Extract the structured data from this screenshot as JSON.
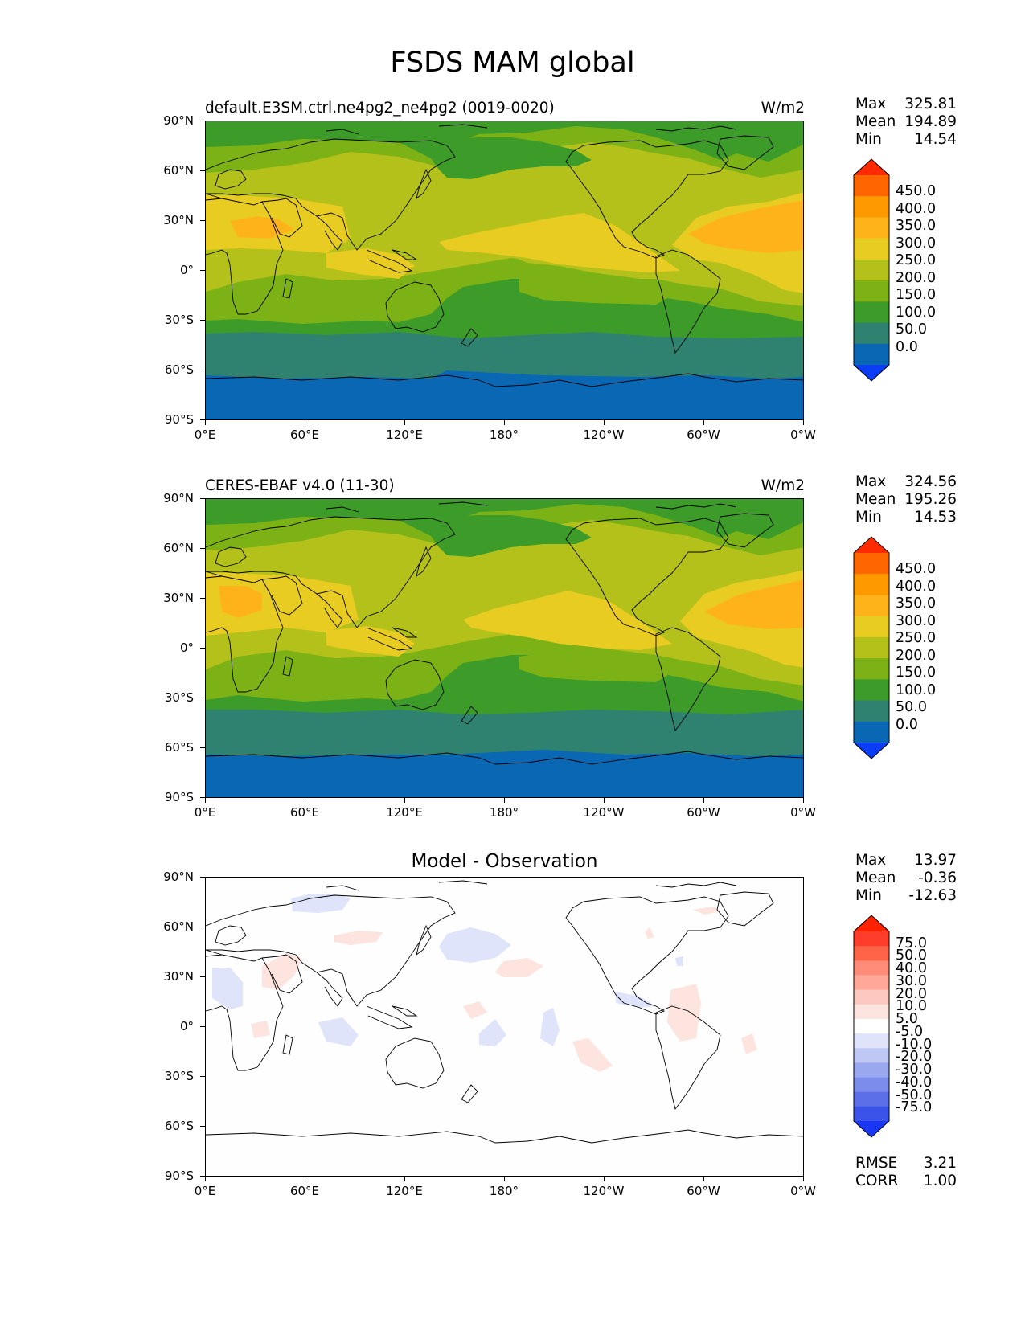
{
  "figure": {
    "title": "FSDS MAM global"
  },
  "lat_labels": [
    "90°N",
    "60°N",
    "30°N",
    "0°",
    "30°S",
    "60°S",
    "90°S"
  ],
  "lon_labels": [
    "0°E",
    "60°E",
    "120°E",
    "180°",
    "120°W",
    "60°W",
    "0°W"
  ],
  "stat_names": {
    "max": "Max",
    "mean": "Mean",
    "min": "Min"
  },
  "panels": [
    {
      "title": "default.E3SM.ctrl.ne4pg2_ne4pg2 (0019-0020)",
      "units": "W/m2",
      "stats": {
        "max": "325.81",
        "mean": "194.89",
        "min": "14.54"
      },
      "colorbar": [
        "450.0",
        "400.0",
        "350.0",
        "300.0",
        "250.0",
        "200.0",
        "150.0",
        "100.0",
        "50.0",
        "0.0"
      ]
    },
    {
      "title": "CERES-EBAF v4.0 (11-30)",
      "units": "W/m2",
      "stats": {
        "max": "324.56",
        "mean": "195.26",
        "min": "14.53"
      },
      "colorbar": [
        "450.0",
        "400.0",
        "350.0",
        "300.0",
        "250.0",
        "200.0",
        "150.0",
        "100.0",
        "50.0",
        "0.0"
      ]
    },
    {
      "title": "Model - Observation",
      "units": "",
      "stats": {
        "max": "13.97",
        "mean": "-0.36",
        "min": "-12.63"
      },
      "colorbar": [
        "75.0",
        "50.0",
        "40.0",
        "30.0",
        "20.0",
        "10.0",
        "5.0",
        "-5.0",
        "-10.0",
        "-20.0",
        "-30.0",
        "-40.0",
        "-50.0",
        "-75.0"
      ],
      "rmse": {
        "label": "RMSE",
        "value": "3.21"
      },
      "corr": {
        "label": "CORR",
        "value": "1.00"
      }
    }
  ],
  "colors": {
    "main_scale": [
      "#ff2a00",
      "#ff6600",
      "#ff9900",
      "#ffb31a",
      "#e9cc21",
      "#b5c11b",
      "#7cb215",
      "#3d9c29",
      "#2f8270",
      "#0a67b4",
      "#0a3df5"
    ],
    "diff_scale": [
      "#ff2200",
      "#ff3d2a",
      "#ff6448",
      "#ff8c78",
      "#ffa898",
      "#fcc8bf",
      "#fde4df",
      "#ffffff",
      "#dfe4fa",
      "#bfc8f5",
      "#9aa8f0",
      "#7b8ceb",
      "#5c6fe8",
      "#3c53ea",
      "#1936f5"
    ]
  }
}
